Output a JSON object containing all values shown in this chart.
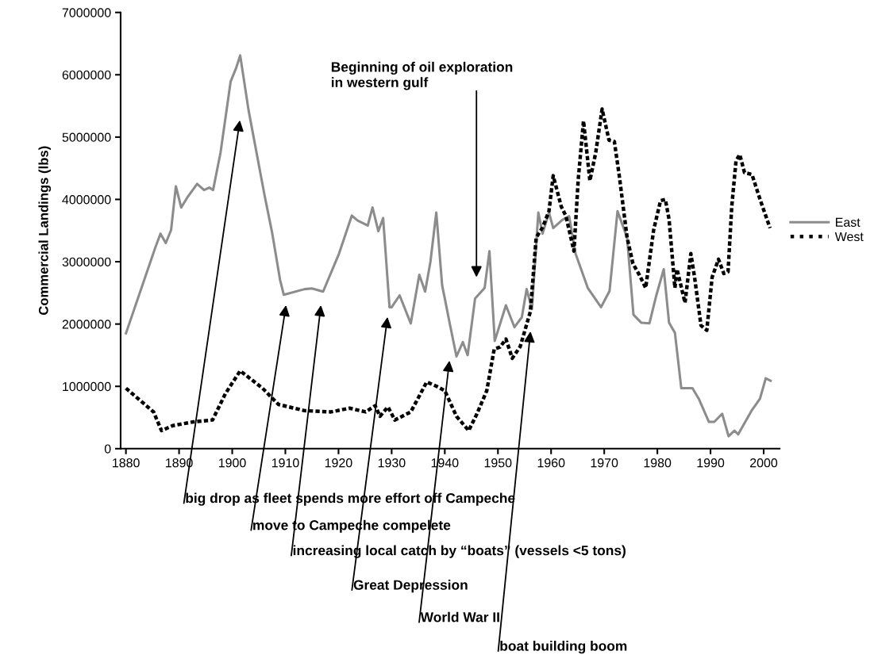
{
  "chart_data": {
    "type": "line",
    "ylabel": "Commercial Landings (lbs)",
    "xlim": [
      1879,
      2003
    ],
    "xticks": [
      1880,
      1890,
      1900,
      1910,
      1920,
      1930,
      1940,
      1950,
      1960,
      1970,
      1980,
      1990,
      2000
    ],
    "ylim": [
      0,
      7000000
    ],
    "yticks": [
      0,
      1000000,
      2000000,
      3000000,
      4000000,
      5000000,
      6000000,
      7000000
    ],
    "grid": false,
    "legend": "right",
    "marker": "none",
    "series": [
      {
        "name": "East",
        "color": "#8c8c8c",
        "line_style": "solid",
        "x": [
          1880,
          1885.5,
          1886.5,
          1887.5,
          1888.5,
          1889.4,
          1890.4,
          1891.7,
          1893.4,
          1894.7,
          1895.7,
          1896.4,
          1897.8,
          1899.7,
          1900.7,
          1901.5,
          1903.1,
          1906.1,
          1907.5,
          1909,
          1909.7,
          1913.6,
          1915,
          1917.1,
          1920.1,
          1922.5,
          1923.6,
          1925.5,
          1926.4,
          1927.5,
          1928.4,
          1929.6,
          1930,
          1931.5,
          1933.6,
          1935.2,
          1936.3,
          1937.3,
          1938.4,
          1939.5,
          1940,
          1941,
          1942.2,
          1943.4,
          1944.3,
          1945.7,
          1947.5,
          1948.4,
          1949.4,
          1951.5,
          1953.1,
          1954.5,
          1955.4,
          1956.4,
          1957.6,
          1958.4,
          1959.6,
          1960.4,
          1962.1,
          1963.4,
          1964.6,
          1966.9,
          1969.4,
          1971,
          1972.5,
          1974.3,
          1975.5,
          1977,
          1978.5,
          1979.8,
          1981.2,
          1982.2,
          1983.3,
          1984.5,
          1986.6,
          1987.8,
          1989.7,
          1990.7,
          1992.2,
          1993.4,
          1994.5,
          1995.2,
          1997.8,
          1999.3,
          2000.4,
          2001.3
        ],
        "values": [
          1850000,
          3220000,
          3450000,
          3300000,
          3510000,
          4210000,
          3870000,
          4050000,
          4250000,
          4150000,
          4190000,
          4150000,
          4750000,
          5890000,
          6100000,
          6310000,
          5420000,
          4060000,
          3470000,
          2710000,
          2470000,
          2560000,
          2570000,
          2520000,
          3130000,
          3740000,
          3660000,
          3580000,
          3870000,
          3490000,
          3700000,
          2270000,
          2270000,
          2460000,
          2010000,
          2790000,
          2520000,
          3000000,
          3790000,
          2620000,
          2410000,
          1980000,
          1480000,
          1710000,
          1500000,
          2410000,
          2580000,
          3170000,
          1730000,
          2300000,
          1950000,
          2110000,
          2560000,
          2240000,
          3790000,
          3450000,
          3790000,
          3540000,
          3670000,
          3730000,
          3130000,
          2580000,
          2270000,
          2530000,
          3810000,
          3390000,
          2150000,
          2020000,
          2010000,
          2460000,
          2880000,
          2020000,
          1860000,
          970000,
          970000,
          800000,
          430000,
          430000,
          560000,
          200000,
          290000,
          230000,
          620000,
          800000,
          1130000,
          1090000
        ]
      },
      {
        "name": "West",
        "color": "#000000",
        "line_style": "dotted",
        "x": [
          1880,
          1885.2,
          1886.7,
          1888.8,
          1892.7,
          1896.3,
          1898.7,
          1901.5,
          1905.7,
          1908.7,
          1913.6,
          1918.6,
          1922.1,
          1925.1,
          1926.9,
          1927.8,
          1929.3,
          1930.6,
          1933.6,
          1936.6,
          1938.5,
          1940,
          1942.2,
          1944.5,
          1946,
          1947.9,
          1949.3,
          1950.4,
          1951.5,
          1952.7,
          1954.2,
          1956.1,
          1957.2,
          1958.4,
          1959.6,
          1960.4,
          1961.9,
          1962.8,
          1964.3,
          1965.1,
          1966.1,
          1967.3,
          1968.4,
          1969.6,
          1970.9,
          1971.9,
          1972.8,
          1974.3,
          1975.4,
          1976.6,
          1977.8,
          1979.3,
          1980.6,
          1981.5,
          1982.2,
          1983.3,
          1983.7,
          1985.2,
          1986.3,
          1987,
          1988.2,
          1989.3,
          1990.3,
          1991.5,
          1992.5,
          1993.3,
          1994,
          1994.8,
          1995.5,
          1996.4,
          1997.8,
          1999.4,
          2001.2
        ],
        "values": [
          970000,
          590000,
          290000,
          370000,
          430000,
          460000,
          880000,
          1250000,
          970000,
          710000,
          610000,
          590000,
          650000,
          590000,
          690000,
          520000,
          670000,
          460000,
          590000,
          1070000,
          1000000,
          930000,
          520000,
          290000,
          550000,
          930000,
          1600000,
          1630000,
          1760000,
          1450000,
          1640000,
          2200000,
          3390000,
          3550000,
          3810000,
          4380000,
          3890000,
          3730000,
          3170000,
          4310000,
          5260000,
          4300000,
          4750000,
          5450000,
          4950000,
          4930000,
          4400000,
          3390000,
          2970000,
          2790000,
          2580000,
          3510000,
          3980000,
          4000000,
          3680000,
          2580000,
          2880000,
          2340000,
          3130000,
          2750000,
          1980000,
          1900000,
          2750000,
          3040000,
          2810000,
          2840000,
          3890000,
          4620000,
          4720000,
          4430000,
          4400000,
          3980000,
          3540000
        ]
      }
    ],
    "annotations": [
      "Beginning of oil exploration\nin western gulf",
      "big drop as fleet spends more effort off Campeche",
      "move to Campeche compelete",
      "increasing local catch by “boats” (vessels <5 tons)",
      "Great Depression",
      "World War II",
      "boat building boom"
    ]
  }
}
